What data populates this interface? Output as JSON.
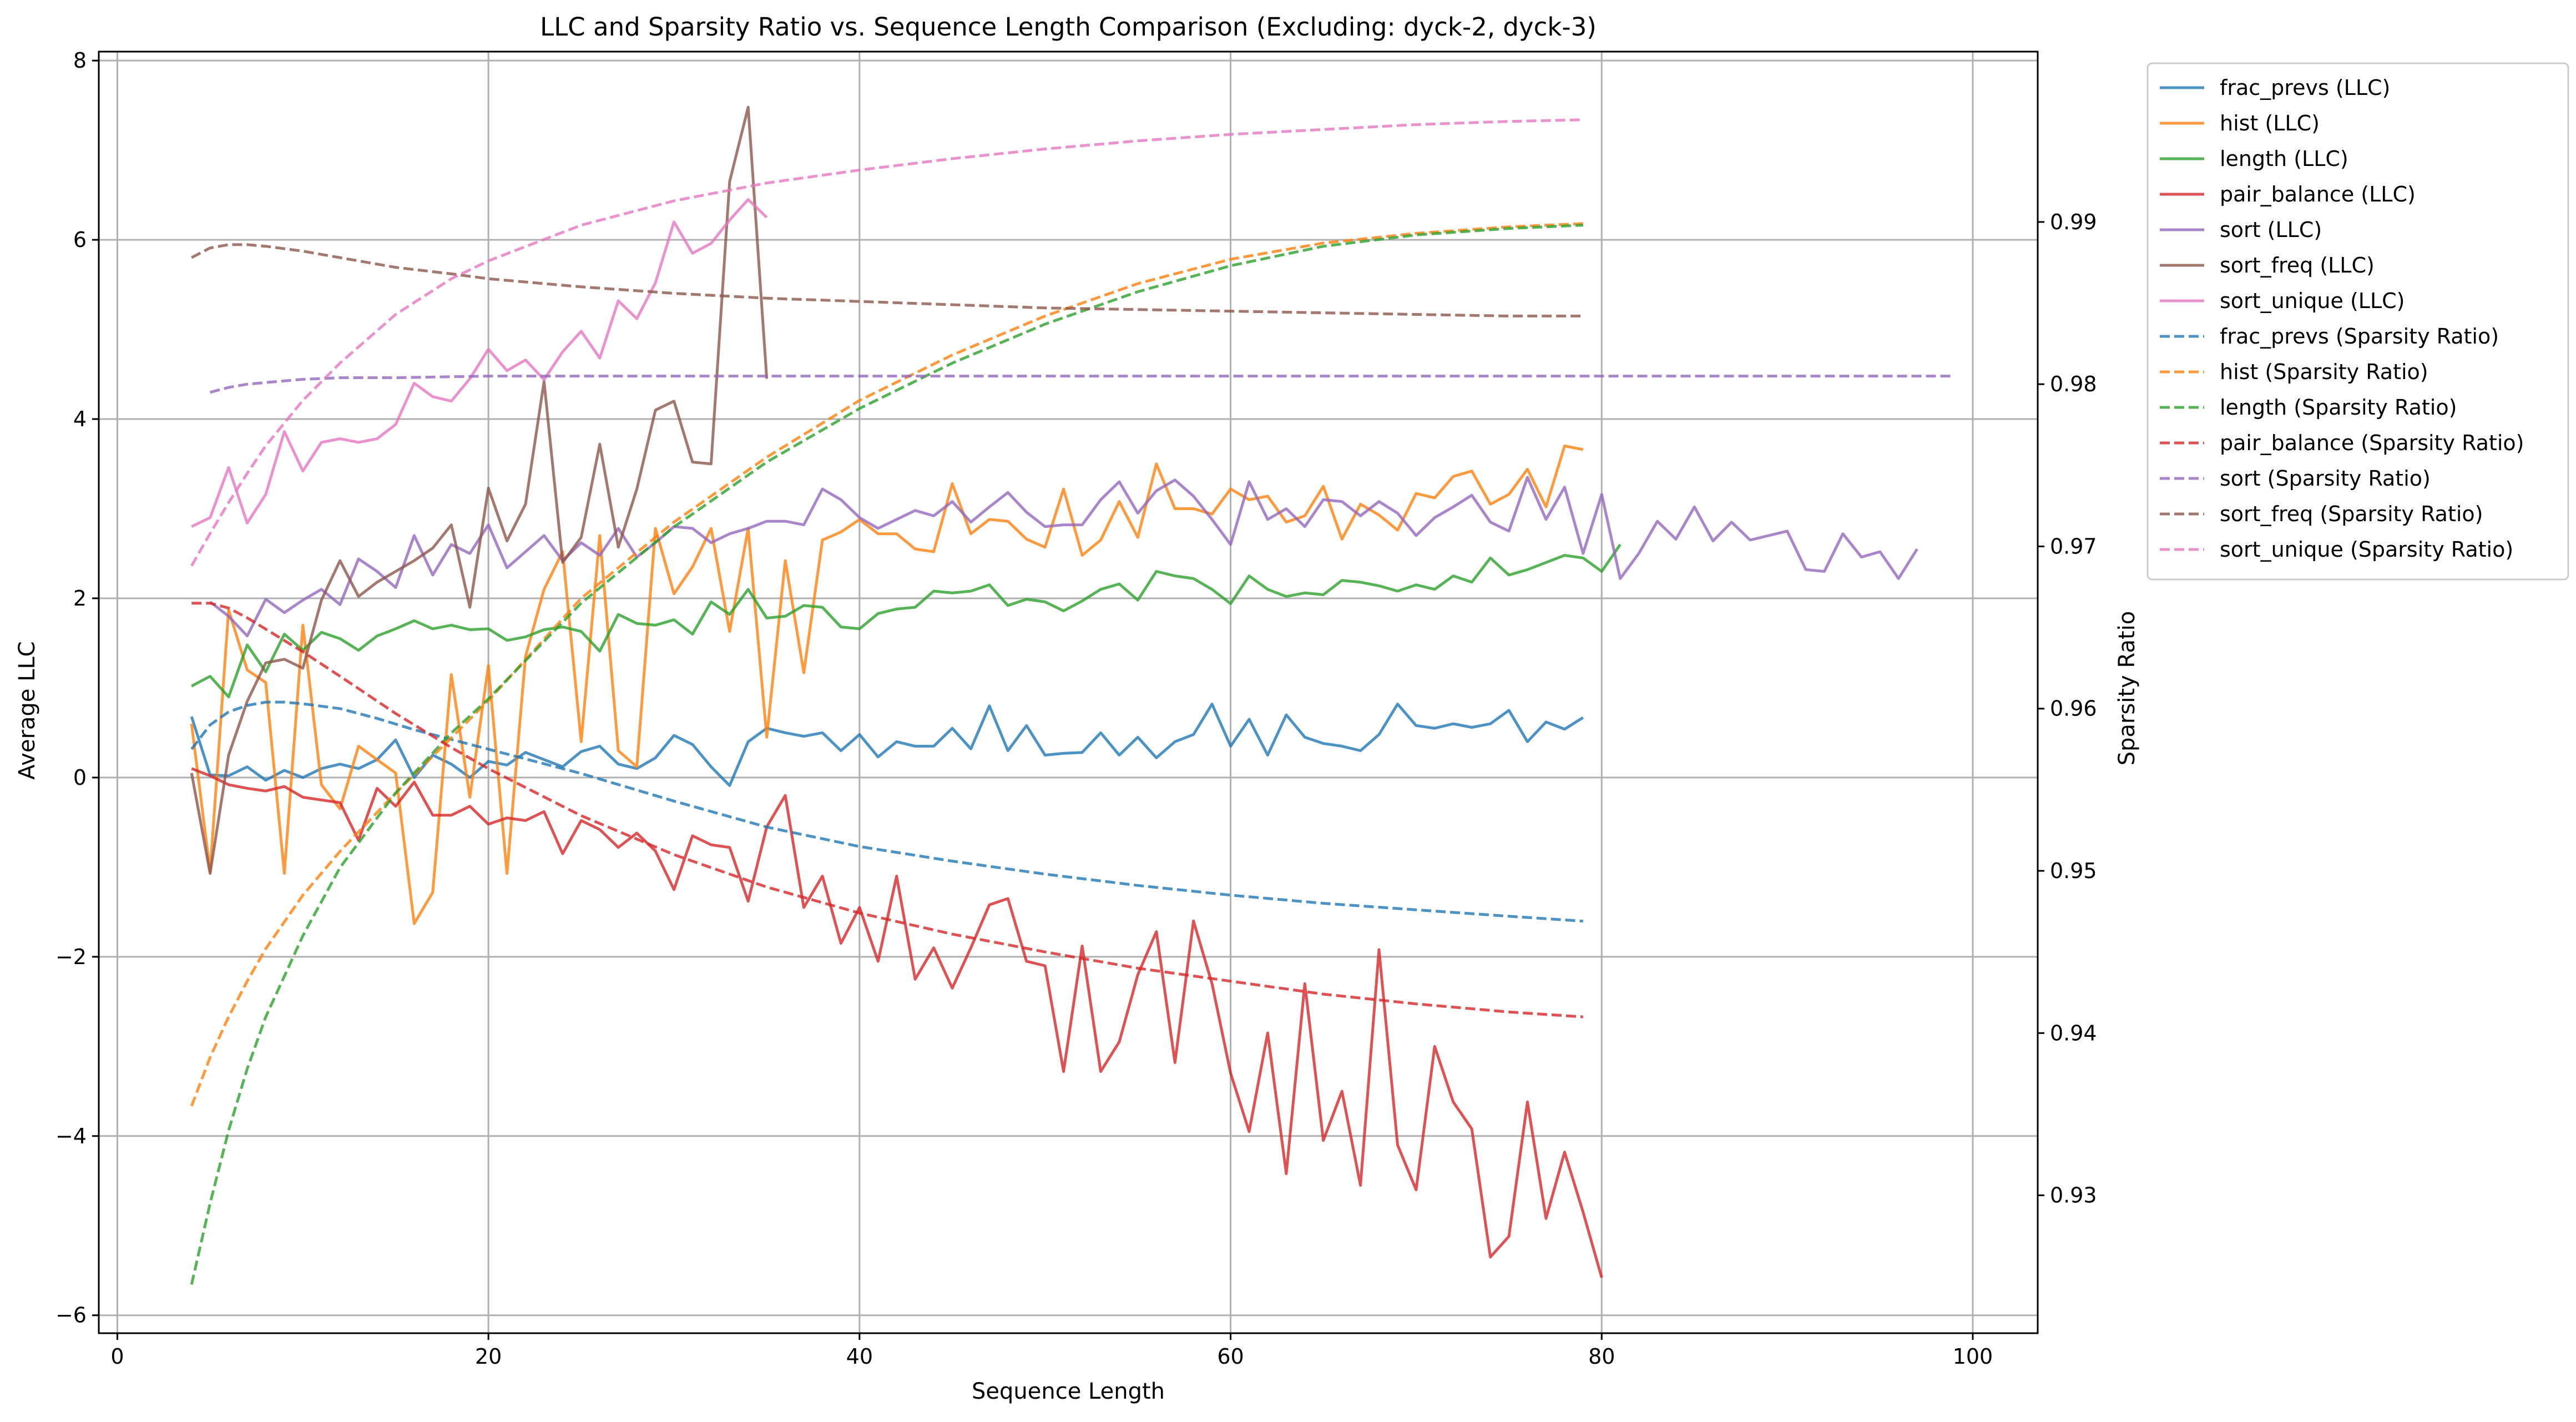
{
  "chart_data": {
    "type": "line",
    "title": "LLC and Sparsity Ratio vs. Sequence Length Comparison (Excluding: dyck-2, dyck-3)",
    "xlabel": "Sequence Length",
    "ylabel": "Average LLC",
    "y2label": "Sparsity Ratio",
    "xlim": [
      -1,
      103.5
    ],
    "ylim": [
      -6.2,
      8.1
    ],
    "y2lim": [
      0.9215,
      1.0005
    ],
    "xticks": [
      0,
      20,
      40,
      60,
      80,
      100
    ],
    "yticks": [
      -6,
      -4,
      -2,
      0,
      2,
      4,
      6,
      8
    ],
    "y2ticks": [
      0.93,
      0.94,
      0.95,
      0.96,
      0.97,
      0.98,
      0.99
    ],
    "grid": true,
    "legend_position": "outside top-right",
    "llc_series": [
      {
        "name": "frac_prevs (LLC)",
        "color": "#1f77b4",
        "start": 4,
        "values": [
          0.68,
          0.03,
          0.02,
          0.12,
          -0.03,
          0.08,
          0.0,
          0.1,
          0.15,
          0.1,
          0.2,
          0.42,
          0.0,
          0.25,
          0.15,
          0.0,
          0.18,
          0.14,
          0.28,
          0.2,
          0.12,
          0.29,
          0.35,
          0.15,
          0.1,
          0.22,
          0.47,
          0.37,
          0.12,
          -0.09,
          0.4,
          0.55,
          0.5,
          0.46,
          0.5,
          0.3,
          0.48,
          0.23,
          0.4,
          0.35,
          0.35,
          0.55,
          0.32,
          0.8,
          0.3,
          0.58,
          0.25,
          0.27,
          0.28,
          0.5,
          0.25,
          0.45,
          0.22,
          0.4,
          0.48,
          0.82,
          0.35,
          0.65,
          0.25,
          0.7,
          0.45,
          0.38,
          0.35,
          0.3,
          0.48,
          0.82,
          0.58,
          0.55,
          0.6,
          0.56,
          0.6,
          0.75,
          0.4,
          0.62,
          0.54,
          0.67
        ]
      },
      {
        "name": "hist (LLC)",
        "color": "#ff7f0e",
        "start": 4,
        "values": [
          0.6,
          -1.05,
          1.87,
          1.2,
          1.06,
          -1.07,
          1.7,
          -0.08,
          -0.35,
          0.35,
          0.2,
          0.05,
          -1.63,
          -1.28,
          1.15,
          -0.22,
          1.25,
          -1.07,
          1.35,
          2.1,
          2.52,
          0.4,
          2.7,
          0.3,
          0.12,
          2.78,
          2.05,
          2.35,
          2.78,
          1.63,
          2.78,
          0.45,
          2.42,
          1.17,
          2.65,
          2.74,
          2.88,
          2.72,
          2.72,
          2.55,
          2.52,
          3.28,
          2.72,
          2.88,
          2.86,
          2.66,
          2.57,
          3.22,
          2.48,
          2.65,
          3.08,
          2.68,
          3.5,
          3.0,
          3.0,
          2.94,
          3.22,
          3.1,
          3.14,
          2.85,
          2.92,
          3.25,
          2.66,
          3.05,
          2.93,
          2.76,
          3.17,
          3.12,
          3.36,
          3.42,
          3.05,
          3.16,
          3.44,
          3.02,
          3.7,
          3.66
        ]
      },
      {
        "name": "length (LLC)",
        "color": "#2ca02c",
        "start": 4,
        "values": [
          1.02,
          1.13,
          0.9,
          1.48,
          1.18,
          1.6,
          1.42,
          1.62,
          1.55,
          1.42,
          1.58,
          1.66,
          1.75,
          1.66,
          1.7,
          1.65,
          1.66,
          1.53,
          1.57,
          1.65,
          1.68,
          1.63,
          1.41,
          1.82,
          1.72,
          1.7,
          1.76,
          1.6,
          1.96,
          1.82,
          2.1,
          1.78,
          1.8,
          1.92,
          1.9,
          1.68,
          1.66,
          1.83,
          1.88,
          1.9,
          2.08,
          2.06,
          2.08,
          2.15,
          1.92,
          1.99,
          1.96,
          1.86,
          1.97,
          2.1,
          2.16,
          1.98,
          2.3,
          2.25,
          2.22,
          2.1,
          1.94,
          2.25,
          2.1,
          2.02,
          2.06,
          2.04,
          2.2,
          2.18,
          2.14,
          2.08,
          2.15,
          2.1,
          2.25,
          2.18,
          2.45,
          2.26,
          2.32,
          2.4,
          2.48,
          2.45,
          2.3,
          2.6
        ]
      },
      {
        "name": "pair_balance (LLC)",
        "color": "#d62728",
        "start": 4,
        "values": [
          0.1,
          0.02,
          -0.08,
          -0.12,
          -0.15,
          -0.1,
          -0.22,
          -0.25,
          -0.28,
          -0.7,
          -0.12,
          -0.32,
          -0.05,
          -0.42,
          -0.42,
          -0.32,
          -0.52,
          -0.45,
          -0.48,
          -0.38,
          -0.85,
          -0.48,
          -0.58,
          -0.78,
          -0.62,
          -0.82,
          -1.25,
          -0.65,
          -0.75,
          -0.78,
          -1.38,
          -0.55,
          -0.2,
          -1.45,
          -1.1,
          -1.85,
          -1.45,
          -2.05,
          -1.1,
          -2.25,
          -1.9,
          -2.35,
          -1.9,
          -1.42,
          -1.35,
          -2.05,
          -2.1,
          -3.28,
          -1.88,
          -3.28,
          -2.95,
          -2.2,
          -1.72,
          -3.18,
          -1.6,
          -2.3,
          -3.3,
          -3.95,
          -2.85,
          -4.42,
          -2.3,
          -4.05,
          -3.5,
          -4.55,
          -1.92,
          -4.1,
          -4.6,
          -3.0,
          -3.62,
          -3.92,
          -5.35,
          -5.12,
          -3.62,
          -4.92,
          -4.18,
          -4.85,
          -5.58
        ]
      },
      {
        "name": "sort (LLC)",
        "color": "#9467bd",
        "start": 5,
        "values": [
          1.96,
          1.8,
          1.58,
          1.99,
          1.84,
          1.98,
          2.1,
          1.93,
          2.44,
          2.3,
          2.12,
          2.7,
          2.26,
          2.6,
          2.5,
          2.82,
          2.34,
          2.52,
          2.7,
          2.42,
          2.62,
          2.48,
          2.78,
          2.46,
          2.62,
          2.8,
          2.78,
          2.62,
          2.72,
          2.78,
          2.86,
          2.86,
          2.82,
          3.22,
          3.1,
          2.9,
          2.78,
          2.88,
          2.98,
          2.92,
          3.08,
          2.85,
          3.02,
          3.18,
          2.96,
          2.8,
          2.82,
          2.82,
          3.1,
          3.3,
          2.95,
          3.2,
          3.32,
          3.14,
          2.88,
          2.6,
          3.3,
          2.88,
          3.0,
          2.8,
          3.1,
          3.08,
          2.92,
          3.08,
          2.95,
          2.7,
          2.9,
          3.02,
          3.15,
          2.85,
          2.75,
          3.35,
          2.88,
          3.24,
          2.5,
          3.16,
          2.22,
          2.5,
          2.86,
          2.66,
          3.02,
          2.64,
          2.85,
          2.65,
          2.7,
          2.75,
          2.32,
          2.3,
          2.72,
          2.46,
          2.52,
          2.22,
          2.55
        ]
      },
      {
        "name": "sort_freq (LLC)",
        "color": "#8c564b",
        "start": 4,
        "values": [
          0.05,
          -1.07,
          0.25,
          0.85,
          1.28,
          1.32,
          1.22,
          1.98,
          2.42,
          2.02,
          2.18,
          2.3,
          2.42,
          2.56,
          2.82,
          1.9,
          3.23,
          2.64,
          3.05,
          4.42,
          2.4,
          2.68,
          3.72,
          2.57,
          3.22,
          4.1,
          4.2,
          3.52,
          3.5,
          6.65,
          7.48,
          4.45
        ]
      },
      {
        "name": "sort_unique (LLC)",
        "color": "#e377c2",
        "start": 4,
        "values": [
          2.8,
          2.9,
          3.46,
          2.84,
          3.16,
          3.86,
          3.42,
          3.74,
          3.78,
          3.74,
          3.78,
          3.94,
          4.4,
          4.25,
          4.2,
          4.45,
          4.78,
          4.54,
          4.66,
          4.44,
          4.75,
          4.98,
          4.68,
          5.32,
          5.12,
          5.52,
          6.2,
          5.85,
          5.96,
          6.22,
          6.45,
          6.25
        ]
      }
    ],
    "sparsity_series": [
      {
        "name": "frac_prevs (Sparsity Ratio)",
        "color": "#1f77b4",
        "x": [
          4,
          5,
          6,
          7,
          8,
          9,
          10,
          12,
          14,
          16,
          18,
          20,
          25,
          30,
          35,
          40,
          45,
          50,
          55,
          60,
          65,
          70,
          75,
          79
        ],
        "values": [
          0.9575,
          0.959,
          0.9598,
          0.9602,
          0.9604,
          0.9604,
          0.9603,
          0.96,
          0.9594,
          0.9587,
          0.9581,
          0.9575,
          0.956,
          0.9543,
          0.9527,
          0.9515,
          0.9506,
          0.9498,
          0.9491,
          0.9485,
          0.948,
          0.9476,
          0.9472,
          0.9469
        ]
      },
      {
        "name": "hist (Sparsity Ratio)",
        "color": "#ff7f0e",
        "x": [
          4,
          5,
          6,
          7,
          8,
          10,
          12,
          15,
          18,
          20,
          25,
          30,
          35,
          40,
          45,
          50,
          55,
          60,
          65,
          70,
          75,
          79
        ],
        "values": [
          0.9355,
          0.9385,
          0.941,
          0.9432,
          0.9452,
          0.9485,
          0.9512,
          0.9548,
          0.9582,
          0.9605,
          0.9668,
          0.9715,
          0.9755,
          0.979,
          0.9818,
          0.9842,
          0.9862,
          0.9877,
          0.9887,
          0.9893,
          0.9897,
          0.9899
        ]
      },
      {
        "name": "length (Sparsity Ratio)",
        "color": "#2ca02c",
        "x": [
          4,
          5,
          6,
          7,
          8,
          10,
          12,
          15,
          18,
          20,
          25,
          30,
          35,
          40,
          45,
          50,
          55,
          60,
          65,
          70,
          75,
          79
        ],
        "values": [
          0.9245,
          0.9295,
          0.934,
          0.9378,
          0.941,
          0.946,
          0.9502,
          0.9548,
          0.9585,
          0.9606,
          0.9665,
          0.9712,
          0.9752,
          0.9785,
          0.9813,
          0.9837,
          0.9857,
          0.9873,
          0.9885,
          0.9892,
          0.9896,
          0.9898
        ]
      },
      {
        "name": "pair_balance (Sparsity Ratio)",
        "color": "#d62728",
        "x": [
          4,
          5,
          6,
          7,
          8,
          10,
          12,
          15,
          18,
          20,
          25,
          30,
          35,
          40,
          45,
          50,
          55,
          60,
          65,
          70,
          75,
          79
        ],
        "values": [
          0.9665,
          0.9665,
          0.9662,
          0.9656,
          0.9649,
          0.9635,
          0.962,
          0.9597,
          0.9576,
          0.9563,
          0.9534,
          0.951,
          0.949,
          0.9474,
          0.9461,
          0.945,
          0.944,
          0.9432,
          0.9424,
          0.9418,
          0.9413,
          0.941
        ]
      },
      {
        "name": "sort (Sparsity Ratio)",
        "color": "#9467bd",
        "x": [
          5,
          6,
          7,
          8,
          10,
          12,
          15,
          20,
          30,
          40,
          60,
          80,
          99
        ],
        "values": [
          0.9795,
          0.9798,
          0.98,
          0.9801,
          0.9803,
          0.9804,
          0.9804,
          0.9805,
          0.9805,
          0.9805,
          0.9805,
          0.9805,
          0.9805
        ]
      },
      {
        "name": "sort_freq (Sparsity Ratio)",
        "color": "#8c564b",
        "x": [
          4,
          5,
          6,
          7,
          8,
          10,
          12,
          15,
          18,
          20,
          25,
          30,
          35,
          40,
          45,
          50,
          55,
          60,
          65,
          70,
          75,
          79
        ],
        "values": [
          0.9878,
          0.9884,
          0.9886,
          0.9886,
          0.9885,
          0.9882,
          0.9878,
          0.9872,
          0.9868,
          0.9865,
          0.986,
          0.9856,
          0.9853,
          0.9851,
          0.9849,
          0.9847,
          0.9846,
          0.9845,
          0.9844,
          0.9843,
          0.9842,
          0.9842
        ]
      },
      {
        "name": "sort_unique (Sparsity Ratio)",
        "color": "#e377c2",
        "x": [
          4,
          5,
          6,
          7,
          8,
          10,
          12,
          15,
          18,
          20,
          25,
          30,
          35,
          40,
          45,
          50,
          55,
          60,
          65,
          70,
          75,
          79
        ],
        "values": [
          0.9688,
          0.9708,
          0.9727,
          0.9745,
          0.9762,
          0.979,
          0.9813,
          0.9843,
          0.9865,
          0.9876,
          0.9898,
          0.9913,
          0.9924,
          0.9932,
          0.9939,
          0.9945,
          0.995,
          0.9954,
          0.9957,
          0.996,
          0.9962,
          0.9963
        ]
      }
    ]
  }
}
